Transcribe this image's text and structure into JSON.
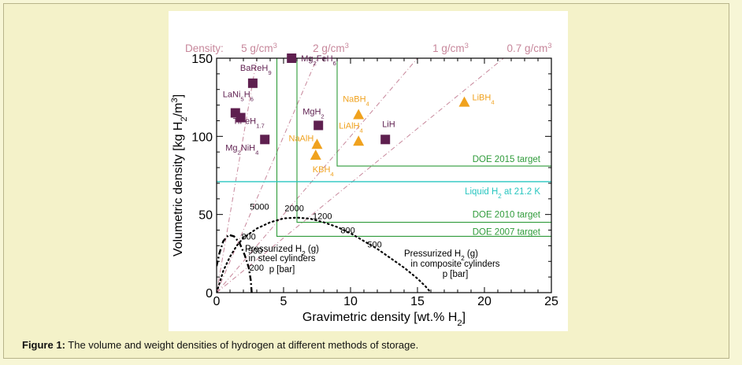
{
  "caption": {
    "label": "Figure 1:",
    "text": "The volume and weight densities of hydrogen at different methods of storage."
  },
  "colors": {
    "page_bg": "#f4f2c9",
    "material_purple": "#5e1f4f",
    "material_orange": "#f0a21e",
    "doe_green": "#2f9b3a",
    "liquid_cyan": "#29c6c0",
    "density_pink": "#c7879b"
  },
  "chart_data": {
    "type": "scatter",
    "xlabel_main": "Gravimetric density [wt.% H",
    "xlabel_sub": "2",
    "xlabel_end": "]",
    "ylabel_main": "Volumetric density [kg H",
    "ylabel_sub": "2",
    "ylabel_mid": "/m",
    "ylabel_sup": "3",
    "ylabel_end": "]",
    "xlim": [
      0,
      25
    ],
    "ylim": [
      0,
      150
    ],
    "xticks": [
      0,
      5,
      10,
      15,
      20,
      25
    ],
    "yticks": [
      0,
      50,
      100,
      150
    ],
    "density_label": "Density:",
    "density_lines": [
      {
        "label_base": "5 g/cm",
        "label_sup": "3",
        "density": 5
      },
      {
        "label_base": "2 g/cm",
        "label_sup": "3",
        "density": 2
      },
      {
        "label_base": "1 g/cm",
        "label_sup": "3",
        "density": 1
      },
      {
        "label_base": "0.7 g/cm",
        "label_sup": "3",
        "density": 0.7
      }
    ],
    "materials_purple": [
      {
        "x": 5.6,
        "y": 150,
        "parts": [
          [
            "Mg",
            "n"
          ],
          [
            "2",
            "s"
          ],
          [
            "FeH",
            "n"
          ],
          [
            "6",
            "s"
          ]
        ]
      },
      {
        "x": 2.7,
        "y": 134,
        "parts": [
          [
            "BaReH",
            "n"
          ],
          [
            "9",
            "s"
          ]
        ]
      },
      {
        "x": 1.4,
        "y": 115,
        "parts": [
          [
            "LaNi",
            "n"
          ],
          [
            "5",
            "s"
          ],
          [
            "H",
            "n"
          ],
          [
            "6",
            "s"
          ]
        ]
      },
      {
        "x": 1.8,
        "y": 112,
        "parts": [
          [
            "TiFeH",
            "n"
          ],
          [
            "1.7",
            "s"
          ]
        ]
      },
      {
        "x": 7.6,
        "y": 107,
        "parts": [
          [
            "MgH",
            "n"
          ],
          [
            "2",
            "s"
          ]
        ]
      },
      {
        "x": 3.6,
        "y": 98,
        "parts": [
          [
            "Mg",
            "n"
          ],
          [
            "2",
            "s"
          ],
          [
            "NiH",
            "n"
          ],
          [
            "4",
            "s"
          ]
        ]
      },
      {
        "x": 12.6,
        "y": 98,
        "parts": [
          [
            "LiH",
            "n"
          ]
        ]
      }
    ],
    "materials_orange": [
      {
        "x": 18.5,
        "y": 122,
        "parts": [
          [
            "LiBH",
            "n"
          ],
          [
            "4",
            "s"
          ]
        ]
      },
      {
        "x": 10.6,
        "y": 114,
        "parts": [
          [
            "NaBH",
            "n"
          ],
          [
            "4",
            "s"
          ]
        ]
      },
      {
        "x": 10.6,
        "y": 97,
        "parts": [
          [
            "LiAlH",
            "n"
          ],
          [
            "4",
            "s"
          ]
        ]
      },
      {
        "x": 7.5,
        "y": 95,
        "parts": [
          [
            "NaAlH",
            "n"
          ],
          [
            "4",
            "s"
          ]
        ]
      },
      {
        "x": 7.4,
        "y": 88,
        "parts": [
          [
            "KBH",
            "n"
          ],
          [
            "4",
            "s"
          ]
        ]
      }
    ],
    "doe_targets": [
      {
        "label": "DOE 2015 target",
        "x": 9,
        "y": 81
      },
      {
        "label": "DOE 2010 target",
        "x": 6,
        "y": 45
      },
      {
        "label": "DOE 2007 target",
        "x": 4.5,
        "y": 36
      }
    ],
    "liquid_h2": {
      "label_base": "Liquid H",
      "label_sub": "2",
      "label_end": " at 21.2 K",
      "y": 71
    },
    "composite_curve": {
      "points": [
        [
          0,
          0
        ],
        [
          0.5,
          14
        ],
        [
          1,
          23
        ],
        [
          1.5,
          30
        ],
        [
          2,
          35
        ],
        [
          3,
          41
        ],
        [
          4,
          45
        ],
        [
          5,
          47.5
        ],
        [
          6,
          48
        ],
        [
          7,
          47.3
        ],
        [
          8,
          45
        ],
        [
          9,
          42
        ],
        [
          10,
          38
        ],
        [
          11,
          33
        ],
        [
          12,
          28
        ],
        [
          13,
          22
        ],
        [
          14,
          16
        ],
        [
          15,
          9
        ],
        [
          15.6,
          4
        ],
        [
          16,
          0
        ]
      ],
      "pressure_labels": [
        {
          "text": "5000",
          "x": 3.2,
          "y": 53
        },
        {
          "text": "2000",
          "x": 5.8,
          "y": 52
        },
        {
          "text": "1200",
          "x": 7.9,
          "y": 47
        },
        {
          "text": "800",
          "x": 9.8,
          "y": 38
        },
        {
          "text": "500",
          "x": 11.8,
          "y": 29
        }
      ],
      "label_lines": [
        {
          "parts": [
            [
              "Pressurized H",
              "n"
            ],
            [
              "2",
              "s"
            ],
            [
              " (g)",
              "n"
            ]
          ]
        },
        {
          "parts": [
            [
              "in composite cylinders",
              "n"
            ]
          ]
        },
        {
          "parts": [
            [
              "p [bar]",
              "n"
            ]
          ]
        }
      ]
    },
    "steel_curve": {
      "points": [
        [
          0,
          17
        ],
        [
          0.2,
          25
        ],
        [
          0.5,
          33
        ],
        [
          0.9,
          37
        ],
        [
          1.3,
          36
        ],
        [
          1.7,
          32
        ],
        [
          2.1,
          24
        ],
        [
          2.4,
          16
        ],
        [
          2.55,
          8
        ],
        [
          2.62,
          0
        ]
      ],
      "pressure_labels": [
        {
          "text": "800",
          "x": 1.85,
          "y": 34
        },
        {
          "text": "500",
          "x": 2.35,
          "y": 25
        },
        {
          "text": "200",
          "x": 2.45,
          "y": 14
        }
      ],
      "label_lines": [
        {
          "parts": [
            [
              "Pressurized H",
              "n"
            ],
            [
              "2",
              "s"
            ],
            [
              " (g)",
              "n"
            ]
          ]
        },
        {
          "parts": [
            [
              "in steel cylinders",
              "n"
            ]
          ]
        },
        {
          "parts": [
            [
              "p [bar]",
              "n"
            ]
          ]
        }
      ]
    }
  }
}
